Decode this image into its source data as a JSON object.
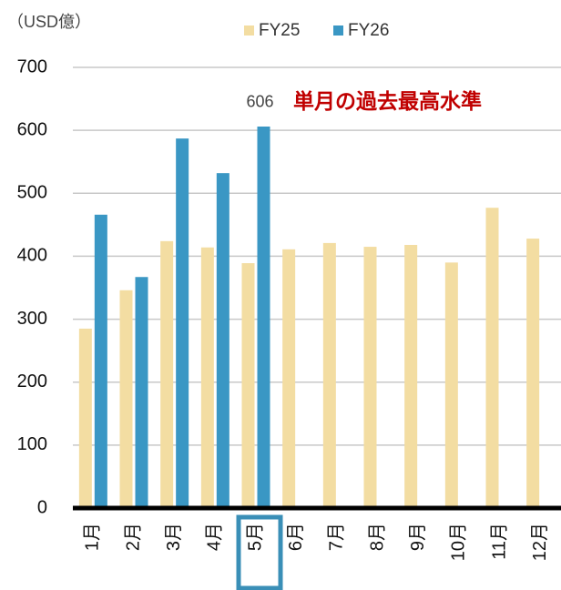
{
  "chart_data": {
    "type": "bar",
    "y_label": "（USD億）",
    "annotation": "単月の過去最高水準",
    "categories": [
      "1月",
      "2月",
      "3月",
      "4月",
      "5月",
      "6月",
      "7月",
      "8月",
      "9月",
      "10月",
      "11月",
      "12月"
    ],
    "series": [
      {
        "name": "FY25",
        "color": "#f3dda2",
        "values": [
          285,
          346,
          424,
          414,
          389,
          411,
          421,
          415,
          418,
          390,
          477,
          428
        ]
      },
      {
        "name": "FY26",
        "color": "#3a97c4",
        "values": [
          466,
          367,
          587,
          532,
          606,
          null,
          null,
          null,
          null,
          null,
          null,
          null
        ]
      }
    ],
    "ylim": [
      0,
      700
    ],
    "yticks": [
      0,
      100,
      200,
      300,
      400,
      500,
      600,
      700
    ],
    "grid": true
  }
}
